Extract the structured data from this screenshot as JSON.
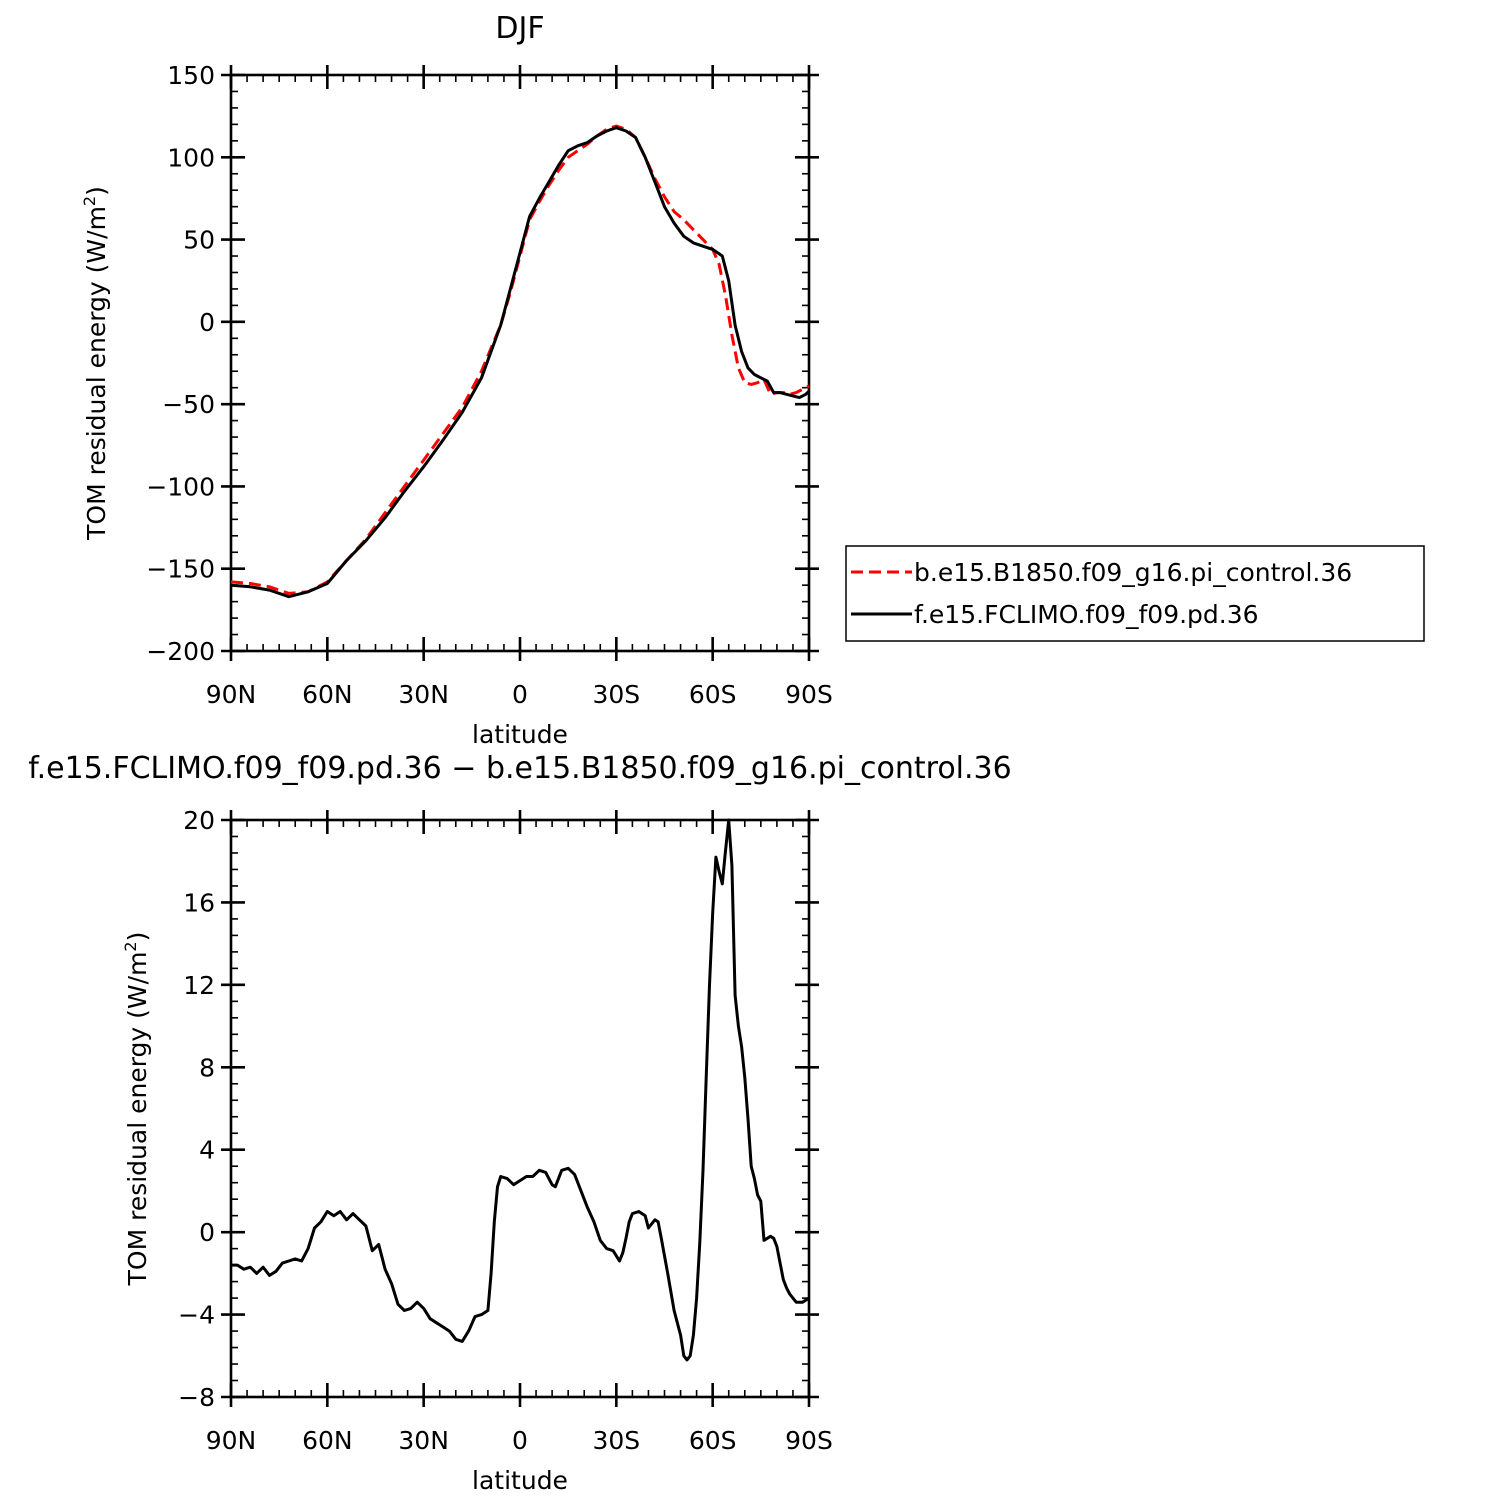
{
  "chart_data": [
    {
      "type": "line",
      "title": "DJF",
      "xlabel": "latitude",
      "ylabel": "TOM residual energy (W/m",
      "ylabel_sup": "2",
      "ylabel_end": ")",
      "xlim": [
        -90,
        90
      ],
      "ylim": [
        -200,
        150
      ],
      "x_ticks": [
        -90,
        -60,
        -30,
        0,
        30,
        60,
        90
      ],
      "x_tick_labels": [
        "90N",
        "60N",
        "30N",
        "0",
        "30S",
        "60S",
        "90S"
      ],
      "y_ticks": [
        150,
        100,
        50,
        0,
        -50,
        -100,
        -150,
        -200
      ],
      "y_tick_labels": [
        "150",
        "100",
        "50",
        "0",
        "−50",
        "−100",
        "−150",
        "−200"
      ],
      "legend_position": "right",
      "series": [
        {
          "name": "b.e15.B1850.f09_g16.pi_control.36",
          "color": "#ff0000",
          "dash": "dashed",
          "points": [
            [
              -90,
              -158
            ],
            [
              -84,
              -159
            ],
            [
              -78,
              -161
            ],
            [
              -72,
              -165
            ],
            [
              -66,
              -164
            ],
            [
              -60,
              -158
            ],
            [
              -54,
              -145
            ],
            [
              -48,
              -132
            ],
            [
              -42,
              -116
            ],
            [
              -36,
              -100
            ],
            [
              -30,
              -84
            ],
            [
              -24,
              -68
            ],
            [
              -18,
              -52
            ],
            [
              -12,
              -30
            ],
            [
              -6,
              -2
            ],
            [
              -3,
              18
            ],
            [
              0,
              40
            ],
            [
              3,
              62
            ],
            [
              6,
              73
            ],
            [
              9,
              83
            ],
            [
              12,
              92
            ],
            [
              15,
              100
            ],
            [
              18,
              104
            ],
            [
              21,
              108
            ],
            [
              24,
              113
            ],
            [
              27,
              117
            ],
            [
              30,
              119
            ],
            [
              33,
              117
            ],
            [
              36,
              112
            ],
            [
              39,
              100
            ],
            [
              42,
              87
            ],
            [
              45,
              76
            ],
            [
              48,
              67
            ],
            [
              51,
              62
            ],
            [
              54,
              56
            ],
            [
              57,
              50
            ],
            [
              60,
              44
            ],
            [
              62,
              35
            ],
            [
              64,
              16
            ],
            [
              66,
              -8
            ],
            [
              68,
              -28
            ],
            [
              70,
              -37
            ],
            [
              72,
              -38
            ],
            [
              74,
              -37
            ],
            [
              76,
              -35
            ],
            [
              78,
              -44
            ],
            [
              80,
              -43
            ],
            [
              82,
              -43
            ],
            [
              84,
              -44
            ],
            [
              86,
              -43
            ],
            [
              88,
              -41
            ],
            [
              90,
              -39
            ]
          ]
        },
        {
          "name": "f.e15.FCLIMO.f09_f09.pd.36",
          "color": "#000000",
          "dash": "solid",
          "points": [
            [
              -90,
              -160
            ],
            [
              -84,
              -161
            ],
            [
              -78,
              -163
            ],
            [
              -72,
              -167
            ],
            [
              -66,
              -164
            ],
            [
              -60,
              -159
            ],
            [
              -54,
              -145
            ],
            [
              -48,
              -133
            ],
            [
              -42,
              -119
            ],
            [
              -36,
              -103
            ],
            [
              -30,
              -88
            ],
            [
              -24,
              -72
            ],
            [
              -18,
              -55
            ],
            [
              -12,
              -34
            ],
            [
              -6,
              -2
            ],
            [
              -3,
              20
            ],
            [
              0,
              42
            ],
            [
              3,
              64
            ],
            [
              6,
              75
            ],
            [
              9,
              85
            ],
            [
              12,
              95
            ],
            [
              15,
              104
            ],
            [
              18,
              107
            ],
            [
              21,
              109
            ],
            [
              24,
              113
            ],
            [
              27,
              116
            ],
            [
              30,
              118
            ],
            [
              33,
              116
            ],
            [
              36,
              112
            ],
            [
              39,
              100
            ],
            [
              42,
              85
            ],
            [
              45,
              70
            ],
            [
              48,
              60
            ],
            [
              51,
              52
            ],
            [
              54,
              48
            ],
            [
              57,
              46
            ],
            [
              60,
              44
            ],
            [
              63,
              40
            ],
            [
              65,
              25
            ],
            [
              67,
              -2
            ],
            [
              69,
              -18
            ],
            [
              71,
              -28
            ],
            [
              73,
              -32
            ],
            [
              75,
              -34
            ],
            [
              77,
              -36
            ],
            [
              79,
              -43
            ],
            [
              81,
              -43
            ],
            [
              83,
              -44
            ],
            [
              85,
              -45
            ],
            [
              87,
              -46
            ],
            [
              89,
              -44
            ],
            [
              90,
              -42
            ]
          ]
        }
      ]
    },
    {
      "type": "line",
      "title": "f.e15.FCLIMO.f09_f09.pd.36 − b.e15.B1850.f09_g16.pi_control.36",
      "xlabel": "latitude",
      "ylabel": "TOM residual energy (W/m",
      "ylabel_sup": "2",
      "ylabel_end": ")",
      "xlim": [
        -90,
        90
      ],
      "ylim": [
        -8,
        20
      ],
      "x_ticks": [
        -90,
        -60,
        -30,
        0,
        30,
        60,
        90
      ],
      "x_tick_labels": [
        "90N",
        "60N",
        "30N",
        "0",
        "30S",
        "60S",
        "90S"
      ],
      "y_ticks": [
        20,
        16,
        12,
        8,
        4,
        0,
        -4,
        -8
      ],
      "y_tick_labels": [
        "20",
        "16",
        "12",
        "8",
        "4",
        "0",
        "−4",
        "−8"
      ],
      "series": [
        {
          "name": "",
          "color": "#000000",
          "dash": "solid",
          "points": [
            [
              -90,
              -1.6
            ],
            [
              -88,
              -1.6
            ],
            [
              -86,
              -1.8
            ],
            [
              -84,
              -1.7
            ],
            [
              -82,
              -2.0
            ],
            [
              -80,
              -1.7
            ],
            [
              -78,
              -2.1
            ],
            [
              -76,
              -1.9
            ],
            [
              -74,
              -1.5
            ],
            [
              -72,
              -1.4
            ],
            [
              -70,
              -1.3
            ],
            [
              -68,
              -1.4
            ],
            [
              -66,
              -0.8
            ],
            [
              -64,
              0.2
            ],
            [
              -62,
              0.5
            ],
            [
              -60,
              1.0
            ],
            [
              -58,
              0.8
            ],
            [
              -56,
              1.0
            ],
            [
              -54,
              0.6
            ],
            [
              -52,
              0.9
            ],
            [
              -50,
              0.6
            ],
            [
              -48,
              0.3
            ],
            [
              -46,
              -0.9
            ],
            [
              -44,
              -0.6
            ],
            [
              -42,
              -1.8
            ],
            [
              -40,
              -2.5
            ],
            [
              -38,
              -3.5
            ],
            [
              -36,
              -3.8
            ],
            [
              -34,
              -3.7
            ],
            [
              -32,
              -3.4
            ],
            [
              -30,
              -3.7
            ],
            [
              -28,
              -4.2
            ],
            [
              -26,
              -4.4
            ],
            [
              -24,
              -4.6
            ],
            [
              -22,
              -4.8
            ],
            [
              -20,
              -5.2
            ],
            [
              -18,
              -5.3
            ],
            [
              -16,
              -4.8
            ],
            [
              -14,
              -4.1
            ],
            [
              -12,
              -4.0
            ],
            [
              -10,
              -3.8
            ],
            [
              -9,
              -2.0
            ],
            [
              -8,
              0.5
            ],
            [
              -7,
              2.2
            ],
            [
              -6,
              2.7
            ],
            [
              -4,
              2.6
            ],
            [
              -2,
              2.3
            ],
            [
              0,
              2.5
            ],
            [
              2,
              2.7
            ],
            [
              4,
              2.7
            ],
            [
              6,
              3.0
            ],
            [
              8,
              2.9
            ],
            [
              10,
              2.3
            ],
            [
              11,
              2.2
            ],
            [
              13,
              3.0
            ],
            [
              15,
              3.1
            ],
            [
              17,
              2.8
            ],
            [
              19,
              2.0
            ],
            [
              21,
              1.2
            ],
            [
              23,
              0.5
            ],
            [
              25,
              -0.4
            ],
            [
              27,
              -0.8
            ],
            [
              29,
              -0.9
            ],
            [
              31,
              -1.4
            ],
            [
              32,
              -1.0
            ],
            [
              33,
              -0.3
            ],
            [
              34,
              0.5
            ],
            [
              35,
              0.9
            ],
            [
              37,
              1.0
            ],
            [
              39,
              0.8
            ],
            [
              40,
              0.2
            ],
            [
              42,
              0.6
            ],
            [
              43,
              0.5
            ],
            [
              44,
              -0.3
            ],
            [
              46,
              -2.0
            ],
            [
              48,
              -3.8
            ],
            [
              50,
              -5.0
            ],
            [
              51,
              -6.0
            ],
            [
              52,
              -6.2
            ],
            [
              53,
              -6.0
            ],
            [
              54,
              -5.0
            ],
            [
              55,
              -3.2
            ],
            [
              56,
              -0.5
            ],
            [
              57,
              3.0
            ],
            [
              58,
              7.5
            ],
            [
              59,
              12.0
            ],
            [
              60,
              15.5
            ],
            [
              61,
              18.2
            ],
            [
              62,
              17.5
            ],
            [
              63,
              16.9
            ],
            [
              64,
              18.5
            ],
            [
              65,
              20.0
            ],
            [
              66,
              17.8
            ],
            [
              67,
              11.5
            ],
            [
              68,
              10.0
            ],
            [
              69,
              9.0
            ],
            [
              70,
              7.5
            ],
            [
              71,
              5.5
            ],
            [
              72,
              3.2
            ],
            [
              73,
              2.6
            ],
            [
              74,
              1.8
            ],
            [
              75,
              1.5
            ],
            [
              76,
              -0.4
            ],
            [
              77,
              -0.3
            ],
            [
              78,
              -0.2
            ],
            [
              79,
              -0.3
            ],
            [
              80,
              -0.7
            ],
            [
              81,
              -1.5
            ],
            [
              82,
              -2.3
            ],
            [
              83,
              -2.7
            ],
            [
              84,
              -3.0
            ],
            [
              85,
              -3.2
            ],
            [
              86,
              -3.4
            ],
            [
              88,
              -3.4
            ],
            [
              90,
              -3.2
            ]
          ]
        }
      ]
    }
  ]
}
